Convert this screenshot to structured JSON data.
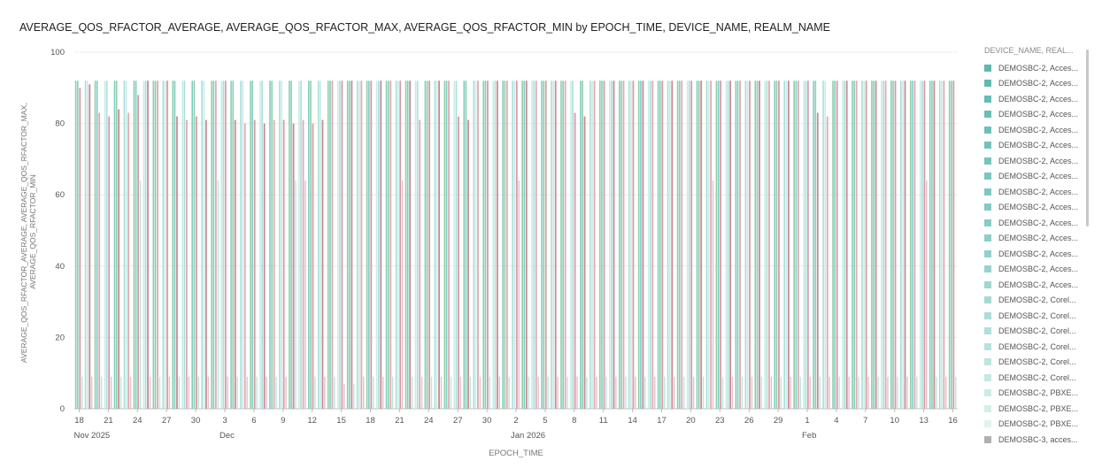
{
  "chart_data": {
    "type": "bar",
    "title": "AVERAGE_QOS_RFACTOR_AVERAGE, AVERAGE_QOS_RFACTOR_MAX, AVERAGE_QOS_RFACTOR_MIN by EPOCH_TIME, DEVICE_NAME, REALM_NAME",
    "xlabel": "EPOCH_TIME",
    "ylabel": "AVERAGE_QOS_RFACTOR_AVERAGE, AVERAGE_QOS_RFACTOR_MAX, AVERAGE_QOS_RFACTOR_MIN",
    "ylim": [
      0,
      100
    ],
    "yticks": [
      0,
      20,
      40,
      60,
      80,
      100
    ],
    "grid": true,
    "x_ticks": [
      {
        "label": "18",
        "sub": "Nov 2025"
      },
      {
        "label": "21"
      },
      {
        "label": "24"
      },
      {
        "label": "27"
      },
      {
        "label": "30"
      },
      {
        "label": "3",
        "sub": "Dec"
      },
      {
        "label": "6"
      },
      {
        "label": "9"
      },
      {
        "label": "12"
      },
      {
        "label": "15"
      },
      {
        "label": "18"
      },
      {
        "label": "21"
      },
      {
        "label": "24"
      },
      {
        "label": "27"
      },
      {
        "label": "30"
      },
      {
        "label": "2",
        "sub": "Jan 2026"
      },
      {
        "label": "5"
      },
      {
        "label": "8"
      },
      {
        "label": "11"
      },
      {
        "label": "14"
      },
      {
        "label": "17"
      },
      {
        "label": "20"
      },
      {
        "label": "23"
      },
      {
        "label": "26"
      },
      {
        "label": "29"
      },
      {
        "label": "1",
        "sub": "Feb"
      },
      {
        "label": "4"
      },
      {
        "label": "7"
      },
      {
        "label": "10"
      },
      {
        "label": "13"
      },
      {
        "label": "16"
      }
    ],
    "x_start": "2025-11-18",
    "x_end": "2026-02-16",
    "daily_values": {
      "note_series": [
        "AVERAGE_QOS_RFACTOR_MAX",
        "AVERAGE_QOS_RFACTOR_AVERAGE",
        "AVERAGE_QOS_RFACTOR_MIN"
      ],
      "max": [
        92,
        92,
        92,
        92,
        92,
        92,
        92,
        92,
        92,
        92,
        92,
        92,
        92,
        92,
        92,
        92,
        92,
        92,
        92,
        92,
        92,
        92,
        92,
        92,
        92,
        92,
        92,
        92,
        92,
        92,
        92,
        92,
        92,
        92,
        92,
        92,
        92,
        92,
        92,
        92,
        92,
        92,
        92,
        92,
        92,
        92,
        92,
        92,
        92,
        92,
        92,
        92,
        92,
        92,
        92,
        92,
        92,
        92,
        92,
        92,
        92,
        92,
        92,
        92,
        92,
        92,
        92,
        92,
        92,
        92,
        92,
        92,
        92,
        92,
        92,
        92,
        92,
        92,
        92,
        92,
        92,
        92,
        92,
        92,
        92,
        92,
        92,
        92,
        92,
        92,
        92
      ],
      "average": [
        90,
        91,
        83,
        82,
        84,
        83,
        88,
        92,
        92,
        92,
        82,
        81,
        82,
        81,
        92,
        92,
        81,
        80,
        81,
        80,
        81,
        81,
        80,
        81,
        80,
        81,
        92,
        92,
        92,
        92,
        92,
        92,
        92,
        92,
        92,
        81,
        92,
        92,
        92,
        82,
        81,
        92,
        92,
        92,
        92,
        92,
        92,
        92,
        92,
        92,
        92,
        83,
        82,
        92,
        92,
        92,
        92,
        92,
        92,
        92,
        92,
        92,
        92,
        92,
        92,
        92,
        92,
        92,
        92,
        92,
        92,
        92,
        92,
        92,
        92,
        92,
        83,
        82,
        92,
        92,
        92,
        92,
        92,
        92,
        92,
        92,
        92,
        92,
        92,
        92,
        92
      ],
      "min": [
        9,
        9,
        9,
        9,
        9,
        9,
        64,
        9,
        9,
        9,
        9,
        9,
        9,
        9,
        64,
        9,
        9,
        9,
        9,
        9,
        9,
        9,
        64,
        64,
        9,
        9,
        9,
        7,
        7,
        9,
        9,
        9,
        9,
        64,
        9,
        9,
        9,
        9,
        9,
        9,
        9,
        9,
        9,
        9,
        9,
        64,
        9,
        9,
        9,
        9,
        9,
        9,
        9,
        9,
        9,
        9,
        9,
        9,
        9,
        9,
        9,
        9,
        9,
        9,
        9,
        64,
        9,
        9,
        9,
        9,
        9,
        9,
        9,
        9,
        9,
        9,
        9,
        9,
        9,
        9,
        9,
        9,
        9,
        9,
        9,
        9,
        9,
        64,
        9,
        9,
        9
      ]
    },
    "legend_title": "DEVICE_NAME, REAL...",
    "legend_position": "right",
    "series": [
      {
        "name": "DEMOSBC-2, Acces...",
        "color": "#5fb8b0"
      },
      {
        "name": "DEMOSBC-2, Acces...",
        "color": "#62bab2"
      },
      {
        "name": "DEMOSBC-2, Acces...",
        "color": "#66bcb4"
      },
      {
        "name": "DEMOSBC-2, Acces...",
        "color": "#6abeb6"
      },
      {
        "name": "DEMOSBC-2, Acces...",
        "color": "#6ec0b8"
      },
      {
        "name": "DEMOSBC-2, Acces...",
        "color": "#72c2ba"
      },
      {
        "name": "DEMOSBC-2, Acces...",
        "color": "#76c4bc"
      },
      {
        "name": "DEMOSBC-2, Acces...",
        "color": "#7ac6be"
      },
      {
        "name": "DEMOSBC-2, Acces...",
        "color": "#7fc8c0"
      },
      {
        "name": "DEMOSBC-2, Acces...",
        "color": "#84cac2"
      },
      {
        "name": "DEMOSBC-2, Acces...",
        "color": "#89ccc5"
      },
      {
        "name": "DEMOSBC-2, Acces...",
        "color": "#8ecec8"
      },
      {
        "name": "DEMOSBC-2, Acces...",
        "color": "#94d0ca"
      },
      {
        "name": "DEMOSBC-2, Acces...",
        "color": "#9ad3cd"
      },
      {
        "name": "DEMOSBC-2, Acces...",
        "color": "#a0d6d0"
      },
      {
        "name": "DEMOSBC-2, Corel...",
        "color": "#a6d9d3"
      },
      {
        "name": "DEMOSBC-2, Corel...",
        "color": "#acdcd6"
      },
      {
        "name": "DEMOSBC-2, Corel...",
        "color": "#b2dfd9"
      },
      {
        "name": "DEMOSBC-2, Corel...",
        "color": "#b8e2dc"
      },
      {
        "name": "DEMOSBC-2, Corel...",
        "color": "#bee5df"
      },
      {
        "name": "DEMOSBC-2, Corel...",
        "color": "#c4e8e2"
      },
      {
        "name": "DEMOSBC-2, PBXE...",
        "color": "#cbebe6"
      },
      {
        "name": "DEMOSBC-2, PBXE...",
        "color": "#d4efea"
      },
      {
        "name": "DEMOSBC-2, PBXE...",
        "color": "#e0f3ef"
      },
      {
        "name": "DEMOSBC-3, acces...",
        "color": "#b0b0b0"
      }
    ],
    "bar_colors": {
      "max": [
        "#7fcfc4",
        "#a9dfd7",
        "#8fcfa8",
        "#c9ece6"
      ],
      "average": [
        "#d89aa6",
        "#c98a96",
        "#e0aab4"
      ],
      "min": [
        "#bfe5df",
        "#e6c2c9"
      ]
    }
  }
}
